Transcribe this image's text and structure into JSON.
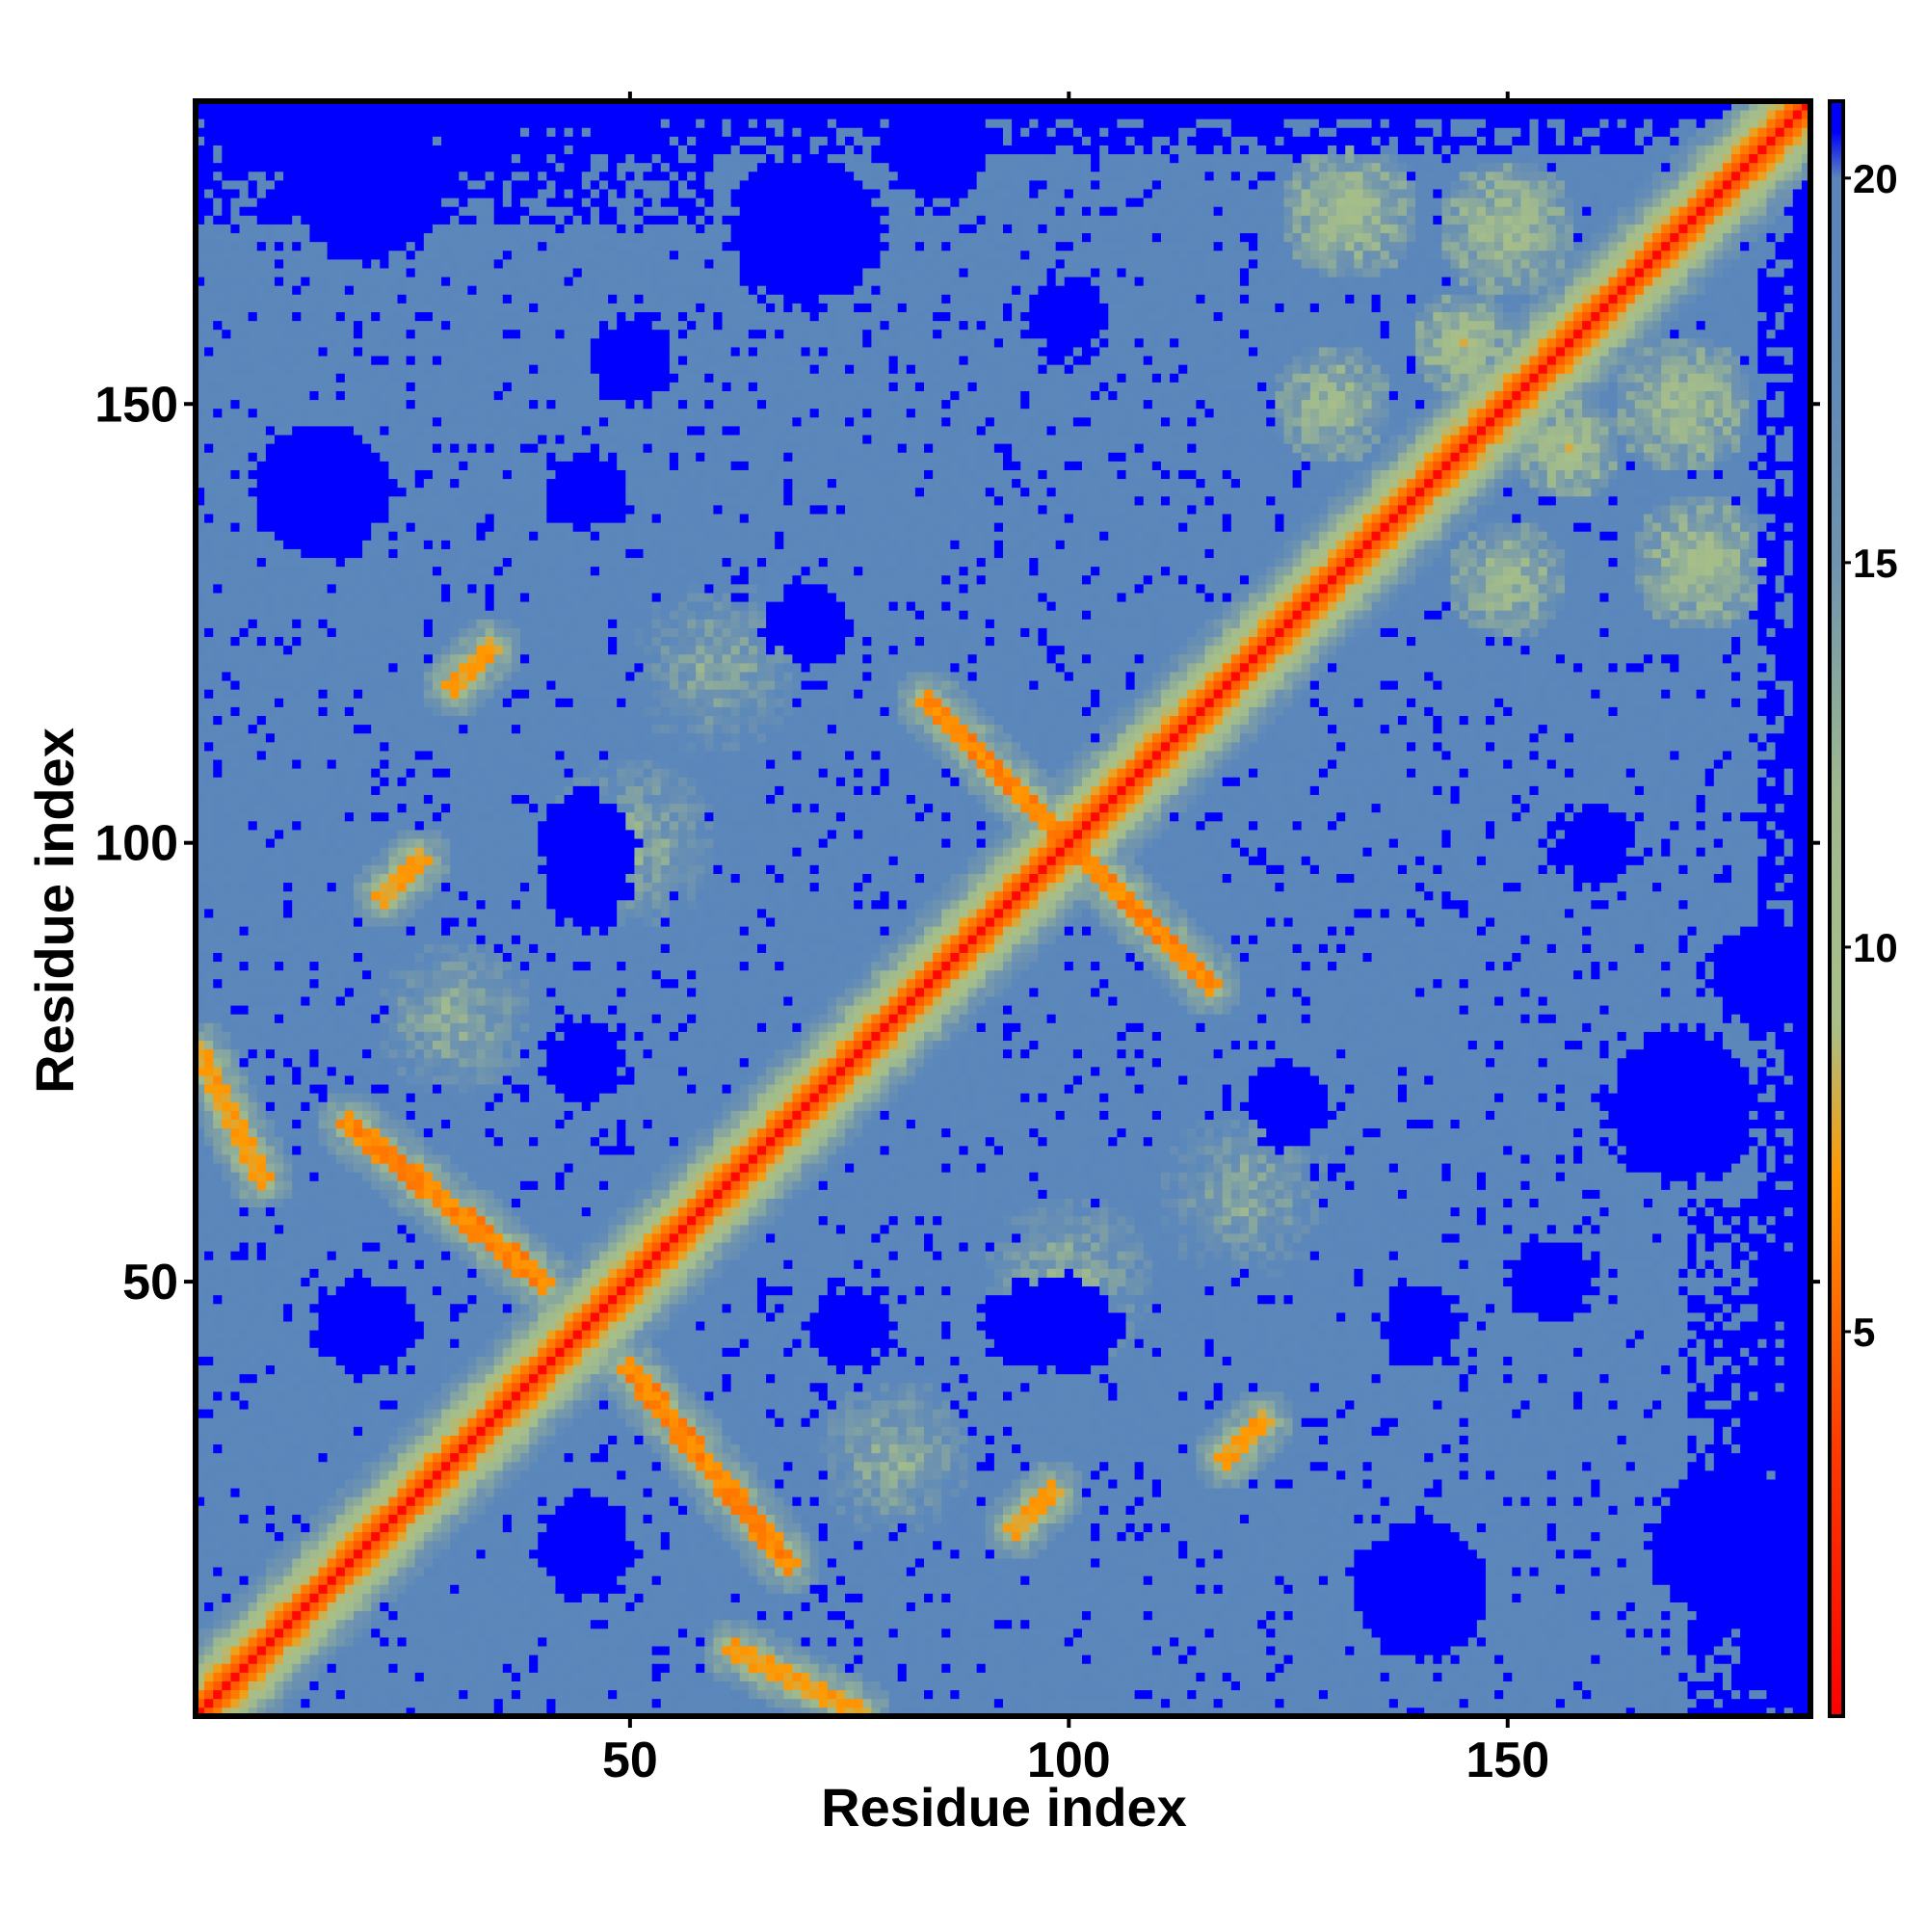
{
  "chart_data": {
    "type": "heatmap",
    "title": "",
    "xlabel": "Residue index",
    "ylabel": "Residue index",
    "n_residues": 184,
    "xlim": [
      1,
      184
    ],
    "ylim": [
      1,
      184
    ],
    "x_ticks": [
      50,
      100,
      150
    ],
    "y_ticks": [
      50,
      100,
      150
    ],
    "colorbar": {
      "label": "",
      "range": [
        0,
        21
      ],
      "ticks": [
        5,
        10,
        15,
        20
      ],
      "stops": [
        {
          "value": 0,
          "color": "#ff0000"
        },
        {
          "value": 3.5,
          "color": "#ff3a00"
        },
        {
          "value": 7,
          "color": "#ff9900"
        },
        {
          "value": 9,
          "color": "#a8bf87"
        },
        {
          "value": 12,
          "color": "#9fb98f"
        },
        {
          "value": 15,
          "color": "#6f94af"
        },
        {
          "value": 18,
          "color": "#5b87bb"
        },
        {
          "value": 20,
          "color": "#5a86bb"
        },
        {
          "value": 20.6,
          "color": "#0000ff"
        },
        {
          "value": 21,
          "color": "#0000ff"
        }
      ]
    },
    "colors": {
      "near": "#ff0000",
      "close": "#ff9900",
      "mid": "#a8bf87",
      "background": "#5a86bb",
      "far": "#0000ff"
    },
    "contact_bands": [
      {
        "kind": "antidiagonal",
        "from": [
          48,
          40
        ],
        "to": [
          66,
          18
        ],
        "distance": 5.5
      },
      {
        "kind": "antidiagonal",
        "from": [
          40,
          50
        ],
        "to": [
          18,
          68
        ],
        "distance": 5.5
      },
      {
        "kind": "antidiagonal",
        "from": [
          100,
          100
        ],
        "to": [
          118,
          82
        ],
        "distance": 5.5
      },
      {
        "kind": "antidiagonal",
        "from": [
          100,
          100
        ],
        "to": [
          84,
          116
        ],
        "distance": 5.5
      },
      {
        "kind": "antidiagonal",
        "from": [
          62,
          8
        ],
        "to": [
          76,
          1
        ],
        "distance": 6.5
      },
      {
        "kind": "antidiagonal",
        "from": [
          8,
          62
        ],
        "to": [
          1,
          76
        ],
        "distance": 6.5
      },
      {
        "kind": "antidiagonal",
        "from": [
          34,
          122
        ],
        "to": [
          30,
          118
        ],
        "distance": 6.5
      },
      {
        "kind": "antidiagonal",
        "from": [
          122,
          34
        ],
        "to": [
          118,
          30
        ],
        "distance": 6.5
      },
      {
        "kind": "antidiagonal",
        "from": [
          26,
          98
        ],
        "to": [
          22,
          94
        ],
        "distance": 6.5
      },
      {
        "kind": "antidiagonal",
        "from": [
          98,
          26
        ],
        "to": [
          94,
          22
        ],
        "distance": 6.5
      }
    ],
    "contact_patches": [
      {
        "center": [
          172,
          132
        ],
        "radius": 8,
        "distance": 8.5
      },
      {
        "center": [
          132,
          172
        ],
        "radius": 8,
        "distance": 8.5
      },
      {
        "center": [
          150,
          170
        ],
        "radius": 8,
        "distance": 8.5
      },
      {
        "center": [
          170,
          150
        ],
        "radius": 8,
        "distance": 8.5
      },
      {
        "center": [
          145,
          157
        ],
        "radius": 6,
        "distance": 8.0
      },
      {
        "center": [
          157,
          145
        ],
        "radius": 6,
        "distance": 8.0
      },
      {
        "center": [
          150,
          130
        ],
        "radius": 7,
        "distance": 9.0
      },
      {
        "center": [
          130,
          150
        ],
        "radius": 7,
        "distance": 9.0
      },
      {
        "center": [
          50,
          100
        ],
        "radius": 10,
        "distance": 10.5
      },
      {
        "center": [
          100,
          50
        ],
        "radius": 10,
        "distance": 10.5
      },
      {
        "center": [
          80,
          30
        ],
        "radius": 9,
        "distance": 10.5
      },
      {
        "center": [
          30,
          80
        ],
        "radius": 9,
        "distance": 10.5
      },
      {
        "center": [
          120,
          60
        ],
        "radius": 10,
        "distance": 11.0
      },
      {
        "center": [
          60,
          120
        ],
        "radius": 10,
        "distance": 11.0
      }
    ],
    "far_regions": [
      {
        "center": [
          15,
          140
        ],
        "radius": 6
      },
      {
        "center": [
          140,
          15
        ],
        "radius": 6
      },
      {
        "center": [
          45,
          100
        ],
        "radius": 5
      },
      {
        "center": [
          100,
          45
        ],
        "radius": 5
      },
      {
        "center": [
          45,
          75
        ],
        "radius": 4
      },
      {
        "center": [
          75,
          45
        ],
        "radius": 4
      },
      {
        "center": [
          70,
          125
        ],
        "radius": 4
      },
      {
        "center": [
          125,
          70
        ],
        "radius": 4
      },
      {
        "center": [
          100,
          160
        ],
        "radius": 4
      },
      {
        "center": [
          160,
          100
        ],
        "radius": 4
      },
      {
        "center": [
          45,
          20
        ],
        "radius": 5
      },
      {
        "center": [
          20,
          45
        ],
        "radius": 5
      },
      {
        "center": [
          140,
          15
        ],
        "radius": 7
      },
      {
        "center": [
          15,
          140
        ],
        "radius": 7
      },
      {
        "center": [
          170,
          70
        ],
        "radius": 8
      },
      {
        "center": [
          70,
          170
        ],
        "radius": 8
      },
      {
        "center": [
          175,
          20
        ],
        "radius": 8
      },
      {
        "center": [
          20,
          175
        ],
        "radius": 8
      },
      {
        "center": [
          155,
          50
        ],
        "radius": 4
      },
      {
        "center": [
          50,
          155
        ],
        "radius": 4
      },
      {
        "center": [
          140,
          45
        ],
        "radius": 4
      },
      {
        "center": [
          45,
          140
        ],
        "radius": 4
      },
      {
        "center": [
          95,
          45
        ],
        "radius": 4
      },
      {
        "center": [
          45,
          95
        ],
        "radius": 4
      },
      {
        "center": [
          85,
          180
        ],
        "radius": 6
      },
      {
        "center": [
          180,
          85
        ],
        "radius": 6
      }
    ]
  }
}
